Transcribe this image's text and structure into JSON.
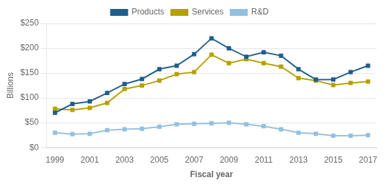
{
  "chart_data": {
    "type": "line",
    "x": [
      1999,
      2000,
      2001,
      2002,
      2003,
      2004,
      2005,
      2006,
      2007,
      2008,
      2009,
      2010,
      2011,
      2012,
      2013,
      2014,
      2015,
      2016,
      2017
    ],
    "xlim": [
      1998.5,
      2017.5
    ],
    "xticks": [
      1999,
      2001,
      2003,
      2005,
      2007,
      2009,
      2011,
      2013,
      2015,
      2017
    ],
    "xlabel": "Fiscal year",
    "ylabel": "Billions",
    "ylim": [
      0,
      250
    ],
    "yticks": [
      {
        "value": 0,
        "label": "$0"
      },
      {
        "value": 50,
        "label": "$50"
      },
      {
        "value": 100,
        "label": "$100"
      },
      {
        "value": 150,
        "label": "$150"
      },
      {
        "value": 200,
        "label": "$200"
      },
      {
        "value": 250,
        "label": "$250"
      }
    ],
    "grid": "y",
    "legend": "top",
    "marker": "square",
    "series": [
      {
        "name": "Products",
        "color": "#1f5e8a",
        "values": [
          70,
          88,
          93,
          110,
          128,
          138,
          158,
          165,
          188,
          220,
          200,
          183,
          192,
          185,
          158,
          137,
          137,
          152,
          165
        ]
      },
      {
        "name": "Services",
        "color": "#b5a000",
        "values": [
          78,
          76,
          80,
          90,
          118,
          125,
          135,
          148,
          152,
          187,
          170,
          178,
          170,
          163,
          140,
          135,
          126,
          130,
          133
        ]
      },
      {
        "name": "R&D",
        "color": "#92c0e0",
        "values": [
          30,
          27,
          28,
          35,
          37,
          38,
          42,
          47,
          48,
          49,
          50,
          47,
          43,
          37,
          30,
          28,
          24,
          24,
          25
        ]
      }
    ]
  }
}
